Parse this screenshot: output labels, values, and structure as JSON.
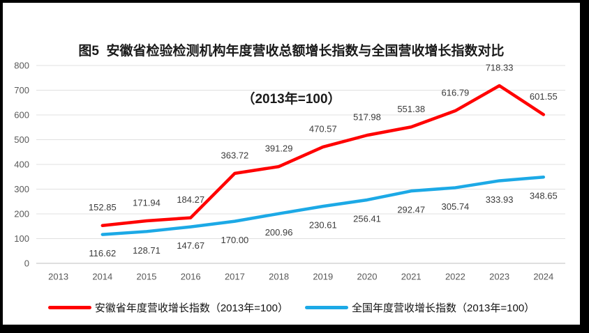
{
  "chart_data": {
    "type": "line",
    "title": "图5  安徽省检验检测机构年度营收总额增长指数与全国营收增长指数对比",
    "subtitle": "（2013年=100）",
    "categories": [
      "2013",
      "2014",
      "2015",
      "2016",
      "2017",
      "2018",
      "2019",
      "2020",
      "2021",
      "2022",
      "2023",
      "2024"
    ],
    "series": [
      {
        "name": "安徽省年度营收增长指数（2013年=100）",
        "color": "#FF0000",
        "label_position": "above",
        "values": [
          null,
          152.85,
          171.94,
          184.27,
          363.72,
          391.29,
          470.57,
          517.98,
          551.38,
          616.79,
          718.33,
          601.55
        ]
      },
      {
        "name": "全国年度营收增长指数（2013年=100）",
        "color": "#1CA9E6",
        "label_position": "below",
        "values": [
          null,
          116.62,
          128.71,
          147.67,
          170.0,
          200.96,
          230.61,
          256.41,
          292.47,
          305.74,
          333.93,
          348.65
        ]
      }
    ],
    "ylim": [
      0,
      800
    ],
    "ytick_step": 100,
    "yticks": [
      0,
      100,
      200,
      300,
      400,
      500,
      600,
      700,
      800
    ],
    "grid": true,
    "data_labels": true,
    "data_label_decimals": 2,
    "legend_position": "bottom"
  },
  "colors": {
    "background": "#FFFFFF",
    "frame_border": "#000000",
    "gridline": "#E0E0E0",
    "axis_line": "#BFBFBF",
    "tick_label": "#595959",
    "data_label": "#3B3B3B",
    "title_text": "#1A1A1A"
  }
}
